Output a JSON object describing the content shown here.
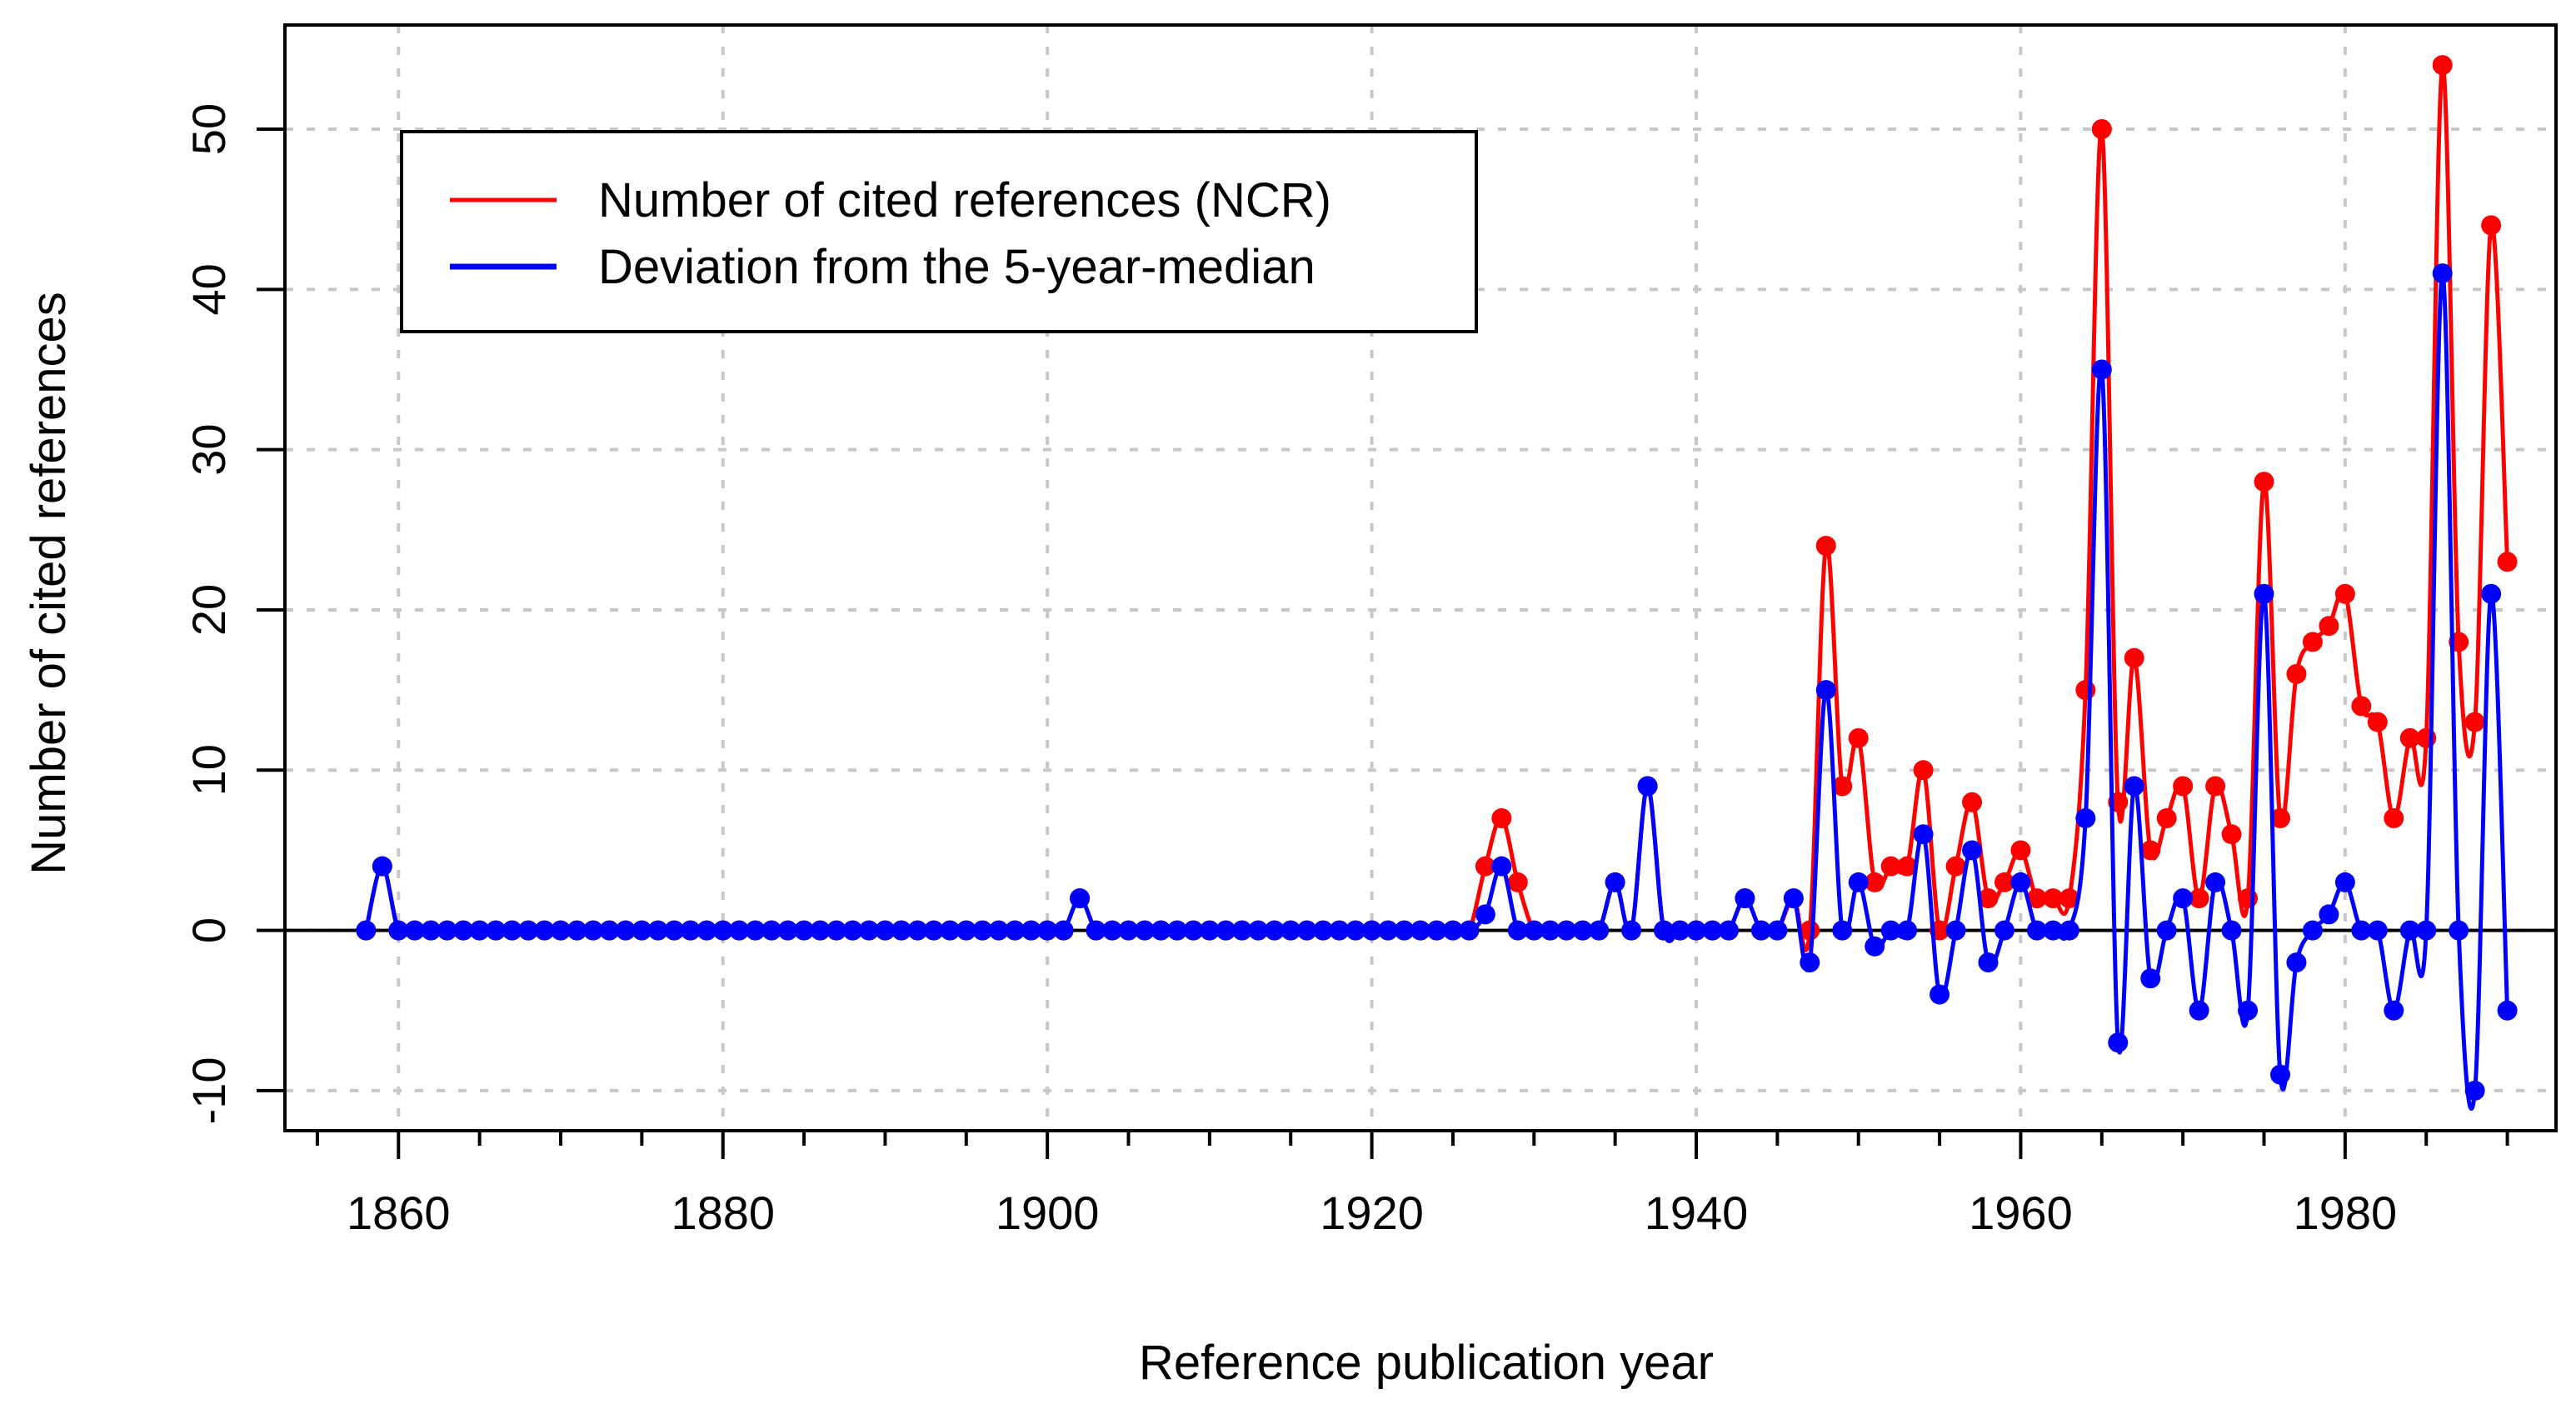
{
  "chart_data": {
    "type": "line",
    "title": "",
    "xlabel": "Reference publication year",
    "ylabel": "Number of cited references",
    "xlim": [
      1853,
      1993
    ],
    "ylim": [
      -12.5,
      56.5
    ],
    "xticks": [
      1860,
      1880,
      1900,
      1920,
      1940,
      1960,
      1980
    ],
    "xtick_labels": [
      "1860",
      "1880",
      "1900",
      "1920",
      "1940",
      "1960",
      "1980"
    ],
    "yticks": [
      -10,
      0,
      10,
      20,
      30,
      40,
      50
    ],
    "ytick_labels": [
      "-10",
      "0",
      "10",
      "20",
      "30",
      "40",
      "50"
    ],
    "grid": true,
    "legend_position": "top-left",
    "zero_line": true,
    "colors": {
      "ncr": "#ff0000",
      "deviation": "#0000ff"
    },
    "x_start": 1858,
    "x_end": 1990,
    "series": [
      {
        "name": "Number of cited references (NCR)",
        "color": "#ff0000",
        "points": [
          [
            1859,
            4
          ],
          [
            1902,
            2
          ],
          [
            1927,
            4
          ],
          [
            1928,
            7
          ],
          [
            1929,
            3
          ],
          [
            1935,
            3
          ],
          [
            1937,
            9
          ],
          [
            1943,
            2
          ],
          [
            1946,
            2
          ],
          [
            1948,
            24
          ],
          [
            1949,
            9
          ],
          [
            1950,
            12
          ],
          [
            1951,
            3
          ],
          [
            1952,
            4
          ],
          [
            1953,
            4
          ],
          [
            1954,
            10
          ],
          [
            1955,
            0
          ],
          [
            1956,
            4
          ],
          [
            1957,
            8
          ],
          [
            1958,
            2
          ],
          [
            1959,
            3
          ],
          [
            1960,
            5
          ],
          [
            1961,
            2
          ],
          [
            1962,
            2
          ],
          [
            1963,
            2
          ],
          [
            1964,
            15
          ],
          [
            1965,
            50
          ],
          [
            1966,
            8
          ],
          [
            1967,
            17
          ],
          [
            1968,
            5
          ],
          [
            1969,
            7
          ],
          [
            1970,
            9
          ],
          [
            1971,
            2
          ],
          [
            1972,
            9
          ],
          [
            1973,
            6
          ],
          [
            1974,
            2
          ],
          [
            1975,
            28
          ],
          [
            1976,
            7
          ],
          [
            1977,
            16
          ],
          [
            1978,
            18
          ],
          [
            1979,
            19
          ],
          [
            1980,
            21
          ],
          [
            1981,
            14
          ],
          [
            1982,
            13
          ],
          [
            1983,
            7
          ],
          [
            1984,
            12
          ],
          [
            1985,
            12
          ],
          [
            1986,
            54
          ],
          [
            1987,
            18
          ],
          [
            1988,
            13
          ],
          [
            1989,
            44
          ],
          [
            1990,
            23
          ]
        ]
      },
      {
        "name": "Deviation from the 5-year-median",
        "color": "#0000ff",
        "points": [
          [
            1859,
            4
          ],
          [
            1902,
            2
          ],
          [
            1927,
            1
          ],
          [
            1928,
            4
          ],
          [
            1935,
            3
          ],
          [
            1937,
            9
          ],
          [
            1943,
            2
          ],
          [
            1946,
            2
          ],
          [
            1947,
            -2
          ],
          [
            1948,
            15
          ],
          [
            1950,
            3
          ],
          [
            1951,
            -1
          ],
          [
            1954,
            6
          ],
          [
            1955,
            -4
          ],
          [
            1957,
            5
          ],
          [
            1958,
            -2
          ],
          [
            1960,
            3
          ],
          [
            1964,
            7
          ],
          [
            1965,
            35
          ],
          [
            1966,
            -7
          ],
          [
            1967,
            9
          ],
          [
            1968,
            -3
          ],
          [
            1970,
            2
          ],
          [
            1971,
            -5
          ],
          [
            1972,
            3
          ],
          [
            1974,
            -5
          ],
          [
            1975,
            21
          ],
          [
            1976,
            -9
          ],
          [
            1977,
            -2
          ],
          [
            1979,
            1
          ],
          [
            1980,
            3
          ],
          [
            1983,
            -5
          ],
          [
            1986,
            41
          ],
          [
            1988,
            -10
          ],
          [
            1989,
            21
          ],
          [
            1990,
            -5
          ]
        ]
      }
    ]
  }
}
